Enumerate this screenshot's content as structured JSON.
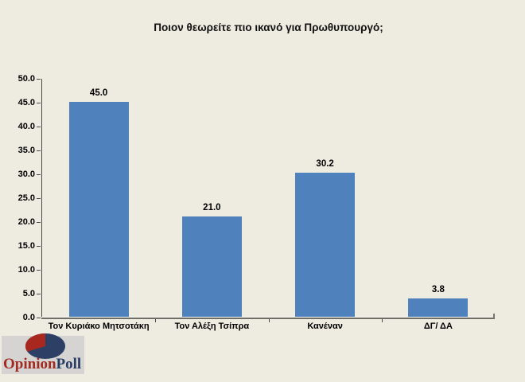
{
  "title": "Ποιον θεωρείτε πιο ικανό για Πρωθυπουργό;",
  "chart_data": {
    "type": "bar",
    "title": "Ποιον θεωρείτε πιο ικανό για Πρωθυπουργό;",
    "categories": [
      "Τον Κυριάκο Μητσοτάκη",
      "Τον Αλέξη Τσίπρα",
      "Κανέναν",
      "ΔΓ/ ΔΑ"
    ],
    "values": [
      45.0,
      21.0,
      30.2,
      3.8
    ],
    "value_labels": [
      "45.0",
      "21.0",
      "30.2",
      "3.8"
    ],
    "xlabel": "",
    "ylabel": "",
    "ylim": [
      0,
      50
    ],
    "ytick_step": 5,
    "ytick_labels": [
      "50.0",
      "45.0",
      "40.0",
      "35.0",
      "30.0",
      "25.0",
      "20.0",
      "15.0",
      "10.0",
      "5.0",
      "0.0"
    ],
    "grid": false,
    "legend": false,
    "bar_color": "#4f81bd",
    "background_color": "#eeece1",
    "axis_color": "#4a4a4a"
  },
  "logo": {
    "word_primary": "Opinion",
    "word_secondary": "Poll",
    "primary_color": "#a22c21",
    "secondary_color": "#263c63",
    "pie_navy": "#2e3f66",
    "pie_red": "#a8281f",
    "box_color": "#d5d4d2"
  }
}
